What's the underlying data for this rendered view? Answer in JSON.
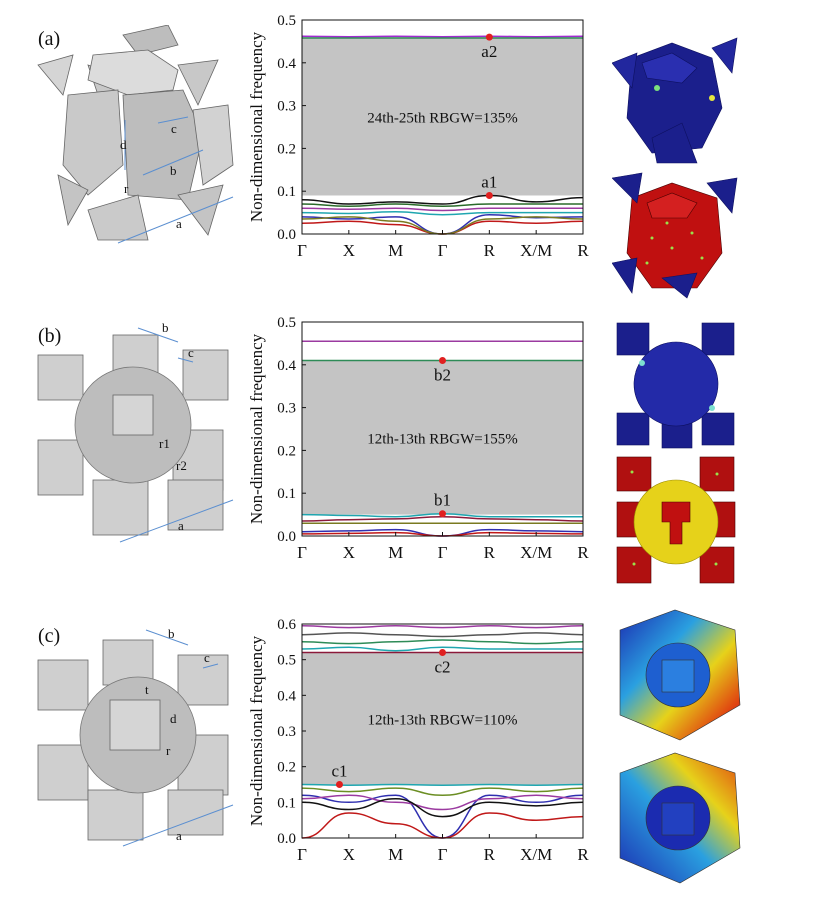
{
  "panels": [
    {
      "label": "(a)"
    },
    {
      "label": "(b)"
    },
    {
      "label": "(c)"
    }
  ],
  "geometry_labels": {
    "a": [
      "d",
      "c",
      "b",
      "r",
      "a"
    ],
    "b": [
      "b",
      "c",
      "r1",
      "r2",
      "a"
    ],
    "c": [
      "b",
      "c",
      "t",
      "d",
      "r",
      "a"
    ]
  },
  "colors": {
    "gap_fill": "#c4c4c4",
    "marker": "#e02020",
    "mode_blue": "#1b1f8c",
    "mode_red": "#c01010",
    "mode_yellow": "#e6d21a",
    "dimension_arrow": "#5b8fd0"
  },
  "chart_data": [
    {
      "type": "line",
      "ylabel": "Non-dimensional frequency",
      "xticks": [
        "Γ",
        "X",
        "M",
        "Γ",
        "R",
        "X/M",
        "R"
      ],
      "ylim": [
        0,
        0.5
      ],
      "yticks": [
        "0.0",
        "0.1",
        "0.2",
        "0.3",
        "0.4",
        "0.5"
      ],
      "gap": [
        0.09,
        0.46
      ],
      "annotation": "24th-25th RBGW=135%",
      "points": [
        {
          "label": "a1",
          "x": 4,
          "y": 0.09
        },
        {
          "label": "a2",
          "x": 4,
          "y": 0.46
        }
      ],
      "series": [
        {
          "color": "#111111",
          "values": [
            0.08,
            0.07,
            0.075,
            0.07,
            0.09,
            0.075,
            0.085
          ]
        },
        {
          "color": "#2a6b2a",
          "values": [
            0.07,
            0.065,
            0.07,
            0.065,
            0.07,
            0.07,
            0.07
          ]
        },
        {
          "color": "#9b3aa0",
          "values": [
            0.06,
            0.058,
            0.06,
            0.055,
            0.06,
            0.06,
            0.06
          ]
        },
        {
          "color": "#1fa6b0",
          "values": [
            0.05,
            0.048,
            0.052,
            0.045,
            0.05,
            0.05,
            0.05
          ]
        },
        {
          "color": "#2f2fb0",
          "values": [
            0.04,
            0.035,
            0.04,
            0.0,
            0.045,
            0.038,
            0.04
          ]
        },
        {
          "color": "#c01818",
          "values": [
            0.025,
            0.03,
            0.022,
            0.0,
            0.03,
            0.025,
            0.03
          ]
        },
        {
          "color": "#7a7a20",
          "values": [
            0.035,
            0.04,
            0.03,
            0.0,
            0.035,
            0.04,
            0.035
          ]
        },
        {
          "color": "#a02ad0",
          "values": [
            0.462,
            0.461,
            0.462,
            0.461,
            0.462,
            0.461,
            0.462
          ]
        },
        {
          "color": "#2e8b57",
          "values": [
            0.458,
            0.458,
            0.458,
            0.458,
            0.458,
            0.458,
            0.458
          ]
        }
      ]
    },
    {
      "type": "line",
      "ylabel": "Non-dimensional frequency",
      "xticks": [
        "Γ",
        "X",
        "M",
        "Γ",
        "R",
        "X/M",
        "R"
      ],
      "ylim": [
        0,
        0.5
      ],
      "yticks": [
        "0.0",
        "0.1",
        "0.2",
        "0.3",
        "0.4",
        "0.5"
      ],
      "gap": [
        0.05,
        0.41
      ],
      "annotation": "12th-13th RBGW=155%",
      "points": [
        {
          "label": "b1",
          "x": 3,
          "y": 0.052
        },
        {
          "label": "b2",
          "x": 3,
          "y": 0.41
        }
      ],
      "series": [
        {
          "color": "#1fa6b0",
          "values": [
            0.05,
            0.048,
            0.045,
            0.052,
            0.045,
            0.045,
            0.045
          ]
        },
        {
          "color": "#8b1a3a",
          "values": [
            0.035,
            0.038,
            0.04,
            0.045,
            0.04,
            0.038,
            0.035
          ]
        },
        {
          "color": "#7a7a20",
          "values": [
            0.03,
            0.03,
            0.03,
            0.03,
            0.03,
            0.03,
            0.03
          ]
        },
        {
          "color": "#2f2fb0",
          "values": [
            0.01,
            0.012,
            0.015,
            0.0,
            0.015,
            0.012,
            0.01
          ]
        },
        {
          "color": "#c01818",
          "values": [
            0.005,
            0.006,
            0.008,
            0.0,
            0.008,
            0.006,
            0.005
          ]
        },
        {
          "color": "#9b3aa0",
          "values": [
            0.455,
            0.455,
            0.455,
            0.455,
            0.455,
            0.455,
            0.455
          ]
        },
        {
          "color": "#2e8b57",
          "values": [
            0.41,
            0.41,
            0.41,
            0.41,
            0.41,
            0.41,
            0.41
          ]
        }
      ]
    },
    {
      "type": "line",
      "ylabel": "Non-dimensional frequency",
      "xticks": [
        "Γ",
        "X",
        "M",
        "Γ",
        "R",
        "X/M",
        "R"
      ],
      "ylim": [
        0,
        0.6
      ],
      "yticks": [
        "0.0",
        "0.1",
        "0.2",
        "0.3",
        "0.4",
        "0.5",
        "0.6"
      ],
      "gap": [
        0.15,
        0.52
      ],
      "annotation": "12th-13th RBGW=110%",
      "points": [
        {
          "label": "c1",
          "x": 0.8,
          "y": 0.15
        },
        {
          "label": "c2",
          "x": 3,
          "y": 0.52
        }
      ],
      "series": [
        {
          "color": "#1fa6b0",
          "values": [
            0.15,
            0.148,
            0.15,
            0.148,
            0.15,
            0.148,
            0.15
          ]
        },
        {
          "color": "#6b8e23",
          "values": [
            0.14,
            0.13,
            0.14,
            0.12,
            0.14,
            0.13,
            0.14
          ]
        },
        {
          "color": "#2f2fb0",
          "values": [
            0.12,
            0.1,
            0.12,
            0.0,
            0.12,
            0.1,
            0.12
          ]
        },
        {
          "color": "#9b3aa0",
          "values": [
            0.11,
            0.12,
            0.1,
            0.08,
            0.11,
            0.12,
            0.11
          ]
        },
        {
          "color": "#111111",
          "values": [
            0.1,
            0.08,
            0.11,
            0.06,
            0.1,
            0.09,
            0.1
          ]
        },
        {
          "color": "#c01818",
          "values": [
            0.0,
            0.07,
            0.04,
            0.0,
            0.07,
            0.05,
            0.06
          ]
        },
        {
          "color": "#9b3aa0",
          "values": [
            0.595,
            0.59,
            0.595,
            0.59,
            0.595,
            0.59,
            0.595
          ]
        },
        {
          "color": "#555555",
          "values": [
            0.57,
            0.575,
            0.57,
            0.565,
            0.57,
            0.575,
            0.57
          ]
        },
        {
          "color": "#2e8b57",
          "values": [
            0.55,
            0.545,
            0.55,
            0.555,
            0.55,
            0.545,
            0.55
          ]
        },
        {
          "color": "#1fa6b0",
          "values": [
            0.53,
            0.535,
            0.525,
            0.535,
            0.53,
            0.53,
            0.53
          ]
        },
        {
          "color": "#8b1a3a",
          "values": [
            0.52,
            0.52,
            0.52,
            0.52,
            0.52,
            0.52,
            0.52
          ]
        }
      ]
    }
  ]
}
